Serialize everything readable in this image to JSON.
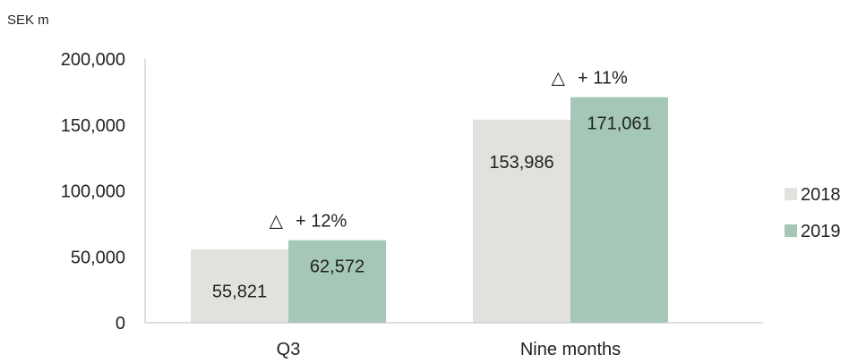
{
  "chart_data": {
    "type": "bar",
    "unit_label": "SEK m",
    "categories": [
      "Q3",
      "Nine months"
    ],
    "series": [
      {
        "name": "2018",
        "values": [
          55821,
          153986
        ],
        "color": "#e3e1dd"
      },
      {
        "name": "2019",
        "values": [
          62572,
          171061
        ],
        "color": "#a4c7b6"
      }
    ],
    "data_labels": [
      [
        "55,821",
        "153,986"
      ],
      [
        "62,572",
        "171,061"
      ]
    ],
    "changes": [
      "+ 12%",
      "+ 11%"
    ],
    "change_symbol": "△",
    "yticks": [
      "0",
      "50,000",
      "100,000",
      "150,000",
      "200,000"
    ],
    "ytick_values": [
      0,
      50000,
      100000,
      150000,
      200000
    ],
    "ylim": [
      0,
      200000
    ],
    "legend_position": "right",
    "axis_color": "#bfbfbf"
  }
}
